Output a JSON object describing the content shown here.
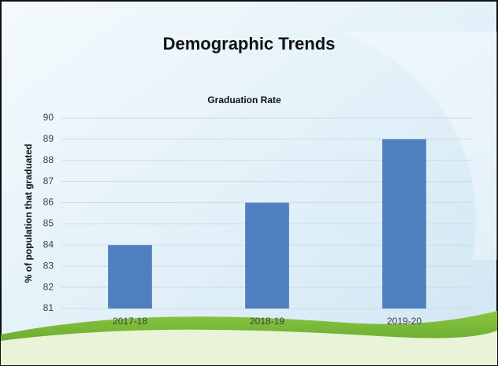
{
  "slide": {
    "title": "Demographic Trends"
  },
  "chart_data": {
    "type": "bar",
    "title": "Graduation Rate",
    "ylabel": "% of population that graduated",
    "categories": [
      "2017-18",
      "2018-19",
      "2019-20"
    ],
    "values": [
      84,
      86,
      89
    ],
    "color": "#4f7fbe",
    "ylim": [
      81,
      90
    ],
    "yticks": [
      81,
      82,
      83,
      84,
      85,
      86,
      87,
      88,
      89,
      90
    ],
    "grid": true
  }
}
